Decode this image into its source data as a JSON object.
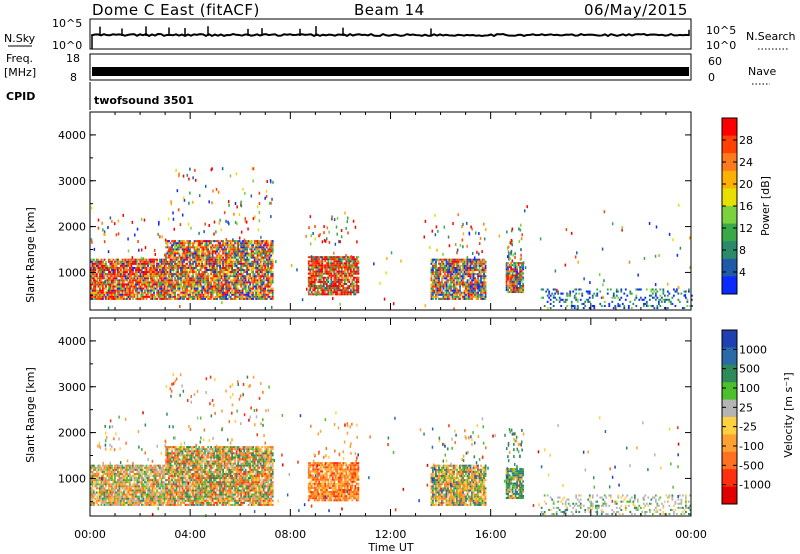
{
  "header": {
    "station": "Dome C East (fitACF)",
    "beam": "Beam 14",
    "date": "06/May/2015"
  },
  "strip_labels": {
    "nsky": "N.Sky",
    "freq_line1": "Freq.",
    "freq_line2": "[MHz]",
    "cpid": "CPID",
    "nsearch": "N.Search",
    "nave": "Nave",
    "nsky_ticks": [
      "10^5",
      "10^0"
    ],
    "freq_ticks": [
      "18",
      "8"
    ],
    "nave_ticks": [
      "60",
      "0"
    ],
    "cpid_text": "twofsound 3501"
  },
  "axes": {
    "xlabel": "Time UT",
    "x_ticks": [
      "00:00",
      "04:00",
      "08:00",
      "12:00",
      "16:00",
      "20:00",
      "00:00"
    ],
    "ylabel": "Slant Range [km]",
    "y_ticks": [
      "4000",
      "3000",
      "2000",
      "1000"
    ]
  },
  "colorbars": {
    "power": {
      "label": "Power [dB]",
      "ticks": [
        "28",
        "24",
        "20",
        "16",
        "12",
        "8",
        "4"
      ],
      "colors": [
        "#ff0000",
        "#ff4000",
        "#ff7a1e",
        "#ffb000",
        "#e8e000",
        "#7cd23c",
        "#38a848",
        "#2a8a6a",
        "#1e5aa8",
        "#0a2aff"
      ]
    },
    "velocity": {
      "label": "Velocity [m s⁻¹]",
      "ticks": [
        "1000",
        "500",
        "100",
        "25",
        "-25",
        "-100",
        "-500",
        "-1000"
      ],
      "colors": [
        "#1e40b0",
        "#2a6aa8",
        "#2f8a5a",
        "#4cbf2c",
        "#b4b4b4",
        "#ffd040",
        "#ffa030",
        "#ff7020",
        "#ff3010",
        "#e00000"
      ]
    }
  },
  "chart_data": [
    {
      "type": "heatmap",
      "title": "Power",
      "xlabel": "Time UT",
      "ylabel": "Slant Range [km]",
      "xlim_hours": [
        0,
        24
      ],
      "ylim_km": [
        180,
        4500
      ],
      "colorbar_label": "Power [dB]",
      "colorbar_range_db": [
        0,
        32
      ],
      "echo_regions": [
        {
          "t_start": 0.0,
          "t_end": 3.0,
          "r_min": 400,
          "r_max": 1300,
          "dominant": "high power (24-30 dB)"
        },
        {
          "t_start": 3.0,
          "t_end": 7.3,
          "r_min": 400,
          "r_max": 1700,
          "dominant": "high power with scattered returns up to 3000 km"
        },
        {
          "t_start": 8.7,
          "t_end": 10.7,
          "r_min": 500,
          "r_max": 1350,
          "dominant": "high power"
        },
        {
          "t_start": 13.6,
          "t_end": 15.8,
          "r_min": 400,
          "r_max": 1300,
          "dominant": "mixed power"
        },
        {
          "t_start": 16.6,
          "t_end": 17.3,
          "r_min": 550,
          "r_max": 1200,
          "dominant": "mixed power"
        },
        {
          "t_start": 18.0,
          "t_end": 24.0,
          "r_min": 200,
          "r_max": 650,
          "dominant": "low power near ground scatter"
        }
      ]
    },
    {
      "type": "heatmap",
      "title": "Velocity",
      "xlabel": "Time UT",
      "ylabel": "Slant Range [km]",
      "xlim_hours": [
        0,
        24
      ],
      "ylim_km": [
        180,
        4500
      ],
      "colorbar_label": "Velocity [m s⁻¹]",
      "colorbar_ticks": [
        1000,
        500,
        100,
        25,
        -25,
        -100,
        -500,
        -1000
      ],
      "echo_regions": [
        {
          "t_start": 0.0,
          "t_end": 3.0,
          "r_min": 400,
          "r_max": 1300,
          "dominant": "-25 to -500 (orange), some near zero"
        },
        {
          "t_start": 3.0,
          "t_end": 7.3,
          "r_min": 400,
          "r_max": 1700,
          "dominant": "-100 to -500 mixed with positive"
        },
        {
          "t_start": 8.7,
          "t_end": 10.7,
          "r_min": 500,
          "r_max": 1350,
          "dominant": "-100 to -500"
        },
        {
          "t_start": 13.6,
          "t_end": 15.8,
          "r_min": 400,
          "r_max": 1300,
          "dominant": "-100 to -500 with positive edges"
        },
        {
          "t_start": 16.6,
          "t_end": 17.3,
          "r_min": 550,
          "r_max": 1200,
          "dominant": "positive (green/blue)"
        },
        {
          "t_start": 18.0,
          "t_end": 24.0,
          "r_min": 200,
          "r_max": 650,
          "dominant": "near zero"
        }
      ]
    }
  ]
}
